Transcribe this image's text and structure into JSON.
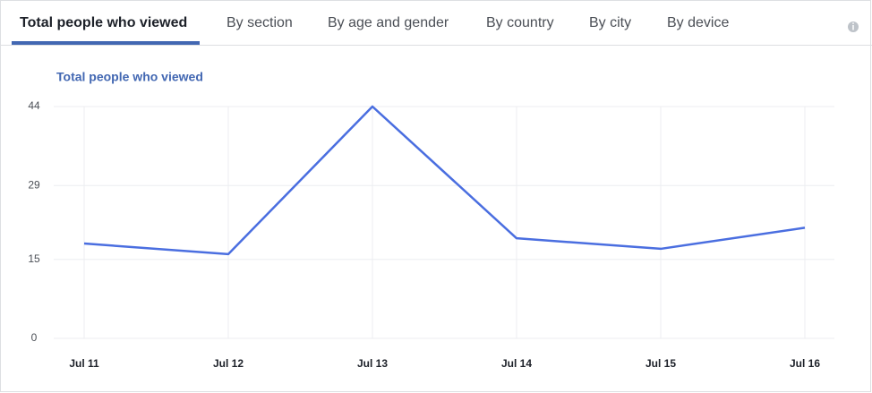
{
  "tabs": [
    "Total people who viewed",
    "By section",
    "By age and gender",
    "By country",
    "By city",
    "By device"
  ],
  "chart_data": {
    "type": "line",
    "title": "Total people who viewed",
    "categories": [
      "Jul 11",
      "Jul 12",
      "Jul 13",
      "Jul 14",
      "Jul 15",
      "Jul 16"
    ],
    "values": [
      18,
      16,
      44,
      19,
      17,
      21
    ],
    "color": "#4a6ee0",
    "ylim": [
      0,
      44
    ],
    "yticks": [
      0,
      15,
      29,
      44
    ],
    "grid": true
  }
}
